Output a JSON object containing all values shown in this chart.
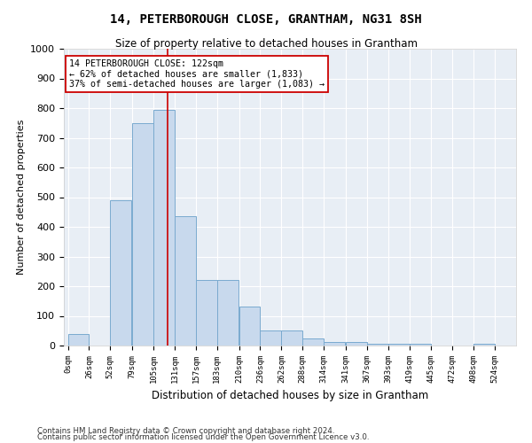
{
  "title": "14, PETERBOROUGH CLOSE, GRANTHAM, NG31 8SH",
  "subtitle": "Size of property relative to detached houses in Grantham",
  "xlabel": "Distribution of detached houses by size in Grantham",
  "ylabel": "Number of detached properties",
  "bar_color": "#c8d9ed",
  "bar_edge_color": "#7aaacf",
  "bg_color": "#e8eef5",
  "grid_color": "#ffffff",
  "annotation_text": "14 PETERBOROUGH CLOSE: 122sqm\n← 62% of detached houses are smaller (1,833)\n37% of semi-detached houses are larger (1,083) →",
  "property_line_x": 122,
  "categories": [
    "0sqm",
    "26sqm",
    "52sqm",
    "79sqm",
    "105sqm",
    "131sqm",
    "157sqm",
    "183sqm",
    "210sqm",
    "236sqm",
    "262sqm",
    "288sqm",
    "314sqm",
    "341sqm",
    "367sqm",
    "393sqm",
    "419sqm",
    "445sqm",
    "472sqm",
    "498sqm",
    "524sqm"
  ],
  "bin_edges": [
    0,
    26,
    52,
    79,
    105,
    131,
    157,
    183,
    210,
    236,
    262,
    288,
    314,
    341,
    367,
    393,
    419,
    445,
    472,
    498,
    524
  ],
  "values": [
    40,
    0,
    490,
    750,
    795,
    435,
    220,
    220,
    130,
    50,
    50,
    25,
    12,
    12,
    7,
    5,
    5,
    1,
    1,
    6,
    0
  ],
  "ylim": [
    0,
    1000
  ],
  "yticks": [
    0,
    100,
    200,
    300,
    400,
    500,
    600,
    700,
    800,
    900,
    1000
  ],
  "footer1": "Contains HM Land Registry data © Crown copyright and database right 2024.",
  "footer2": "Contains public sector information licensed under the Open Government Licence v3.0."
}
